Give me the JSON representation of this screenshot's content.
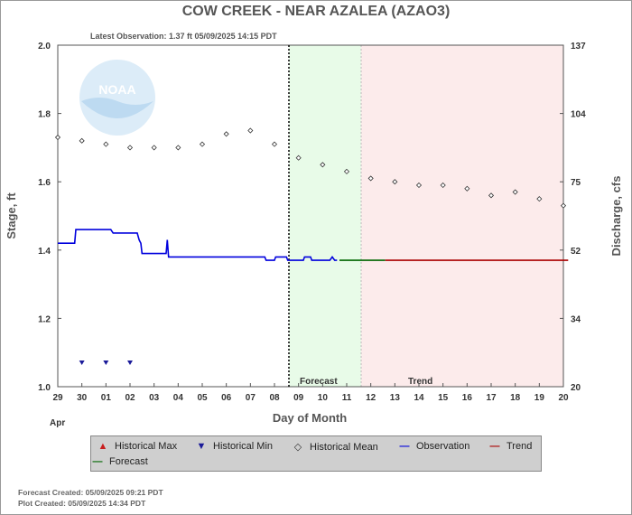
{
  "chart_data": {
    "type": "line",
    "title": "COW CREEK - NEAR AZALEA  (AZAO3)",
    "subtitle": "Latest Observation: 1.37 ft 05/09/2025 14:15 PDT",
    "xlabel": "Day of Month",
    "ylabel_left": "Stage, ft",
    "ylabel_right": "Discharge, cfs",
    "x_ticks": [
      "29",
      "30",
      "01",
      "02",
      "03",
      "04",
      "05",
      "06",
      "07",
      "08",
      "09",
      "10",
      "11",
      "12",
      "13",
      "14",
      "15",
      "16",
      "17",
      "18",
      "19",
      "20"
    ],
    "month_label": "Apr",
    "ylim": [
      1.0,
      2.0
    ],
    "y_ticks": [
      "1.0",
      "1.2",
      "1.4",
      "1.6",
      "1.8",
      "2.0"
    ],
    "right_ticks": [
      {
        "stage": 1.0,
        "label": "20"
      },
      {
        "stage": 1.2,
        "label": "34"
      },
      {
        "stage": 1.4,
        "label": "52"
      },
      {
        "stage": 1.6,
        "label": "75"
      },
      {
        "stage": 1.8,
        "label": "104"
      },
      {
        "stage": 2.0,
        "label": "137"
      }
    ],
    "regions": {
      "now": 9.6,
      "forecast": {
        "from": 9.6,
        "to": 12.6,
        "label": "Forecast",
        "color": "#e8fbe8"
      },
      "trend": {
        "from": 12.6,
        "to": 21.0,
        "label": "Trend",
        "color": "#fcebeb"
      }
    },
    "series": [
      {
        "name": "Observation",
        "color": "#0000dd",
        "points": [
          [
            0.0,
            1.42
          ],
          [
            0.7,
            1.42
          ],
          [
            0.75,
            1.46
          ],
          [
            2.2,
            1.46
          ],
          [
            2.3,
            1.45
          ],
          [
            3.3,
            1.45
          ],
          [
            3.38,
            1.43
          ],
          [
            3.45,
            1.42
          ],
          [
            3.5,
            1.39
          ],
          [
            4.5,
            1.39
          ],
          [
            4.55,
            1.43
          ],
          [
            4.6,
            1.38
          ],
          [
            8.6,
            1.38
          ],
          [
            8.65,
            1.37
          ],
          [
            9.0,
            1.37
          ],
          [
            9.05,
            1.38
          ],
          [
            9.5,
            1.38
          ],
          [
            9.55,
            1.37
          ],
          [
            10.2,
            1.37
          ],
          [
            10.25,
            1.38
          ],
          [
            10.5,
            1.38
          ],
          [
            10.55,
            1.37
          ],
          [
            11.3,
            1.37
          ],
          [
            11.4,
            1.38
          ],
          [
            11.5,
            1.37
          ],
          [
            11.6,
            1.37
          ]
        ]
      },
      {
        "name": "Forecast",
        "color": "#006600",
        "points": [
          [
            11.7,
            1.37
          ],
          [
            13.6,
            1.37
          ]
        ]
      },
      {
        "name": "Trend",
        "color": "#aa0000",
        "points": [
          [
            13.6,
            1.37
          ],
          [
            21.2,
            1.37
          ]
        ]
      },
      {
        "name": "Historical Mean",
        "marker": "diamond",
        "points": [
          [
            0,
            1.73
          ],
          [
            1,
            1.72
          ],
          [
            2,
            1.71
          ],
          [
            3,
            1.7
          ],
          [
            4,
            1.7
          ],
          [
            5,
            1.7
          ],
          [
            6,
            1.71
          ],
          [
            7,
            1.74
          ],
          [
            8,
            1.75
          ],
          [
            9,
            1.71
          ],
          [
            10,
            1.67
          ],
          [
            11,
            1.65
          ],
          [
            12,
            1.63
          ],
          [
            13,
            1.61
          ],
          [
            14,
            1.6
          ],
          [
            15,
            1.59
          ],
          [
            16,
            1.59
          ],
          [
            17,
            1.58
          ],
          [
            18,
            1.56
          ],
          [
            19,
            1.57
          ],
          [
            20,
            1.55
          ],
          [
            21,
            1.53
          ]
        ]
      },
      {
        "name": "Historical Min",
        "marker": "triangle-down",
        "color": "#1a1a99",
        "points": [
          [
            1,
            1.07
          ],
          [
            2,
            1.07
          ],
          [
            3,
            1.07
          ]
        ]
      }
    ],
    "legend": [
      {
        "label": "Historical Max",
        "symbol": "▲",
        "color": "#c81e1e"
      },
      {
        "label": "Historical Min",
        "symbol": "▼",
        "color": "#1a1a99"
      },
      {
        "label": "Historical Mean",
        "symbol": "◇",
        "color": "#333333"
      },
      {
        "label": "Observation",
        "symbol": "—",
        "color": "#0000dd"
      },
      {
        "label": "Trend",
        "symbol": "—",
        "color": "#aa0000"
      },
      {
        "label": "Forecast",
        "symbol": "—",
        "color": "#006600"
      }
    ]
  },
  "footer": {
    "forecast_created": "Forecast Created: 05/09/2025 09:21 PDT",
    "plot_created": "Plot Created: 05/09/2025 14:34 PDT"
  },
  "logo_text": "NOAA"
}
